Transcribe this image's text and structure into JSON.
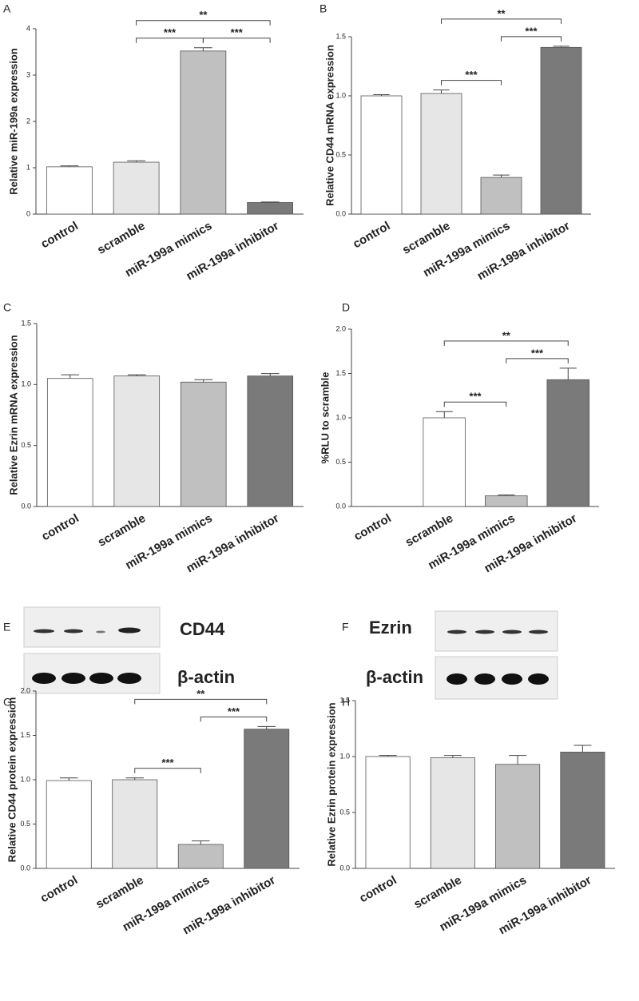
{
  "chart_data": [
    {
      "type": "bar",
      "panel": "A",
      "y_label": "Relative miR-199a expression",
      "categories": [
        "control",
        "scramble",
        "miR-199a mimics",
        "miR-199a inhibitor"
      ],
      "values": [
        1.02,
        1.12,
        3.52,
        0.25
      ],
      "errors": [
        0.02,
        0.03,
        0.07,
        0.01
      ],
      "colors": [
        "#ffffff",
        "#e6e6e6",
        "#c0c0c0",
        "#7a7a7a"
      ],
      "ylim": [
        0,
        4
      ],
      "yticks": [
        0,
        1,
        2,
        3,
        4
      ],
      "annotations": [
        {
          "text": "***",
          "between": [
            "scramble",
            "miR-199a mimics"
          ]
        },
        {
          "text": "***",
          "between": [
            "miR-199a mimics",
            "miR-199a inhibitor"
          ]
        },
        {
          "text": "**",
          "between": [
            "scramble",
            "miR-199a inhibitor"
          ]
        }
      ]
    },
    {
      "type": "bar",
      "panel": "B",
      "y_label": "Relative CD44 mRNA expression",
      "categories": [
        "control",
        "scramble",
        "miR-199a mimics",
        "miR-199a inhibitor"
      ],
      "values": [
        1.0,
        1.02,
        0.31,
        1.41
      ],
      "errors": [
        0.01,
        0.03,
        0.02,
        0.01
      ],
      "colors": [
        "#ffffff",
        "#e6e6e6",
        "#c0c0c0",
        "#7a7a7a"
      ],
      "ylim": [
        0,
        1.5
      ],
      "yticks": [
        {
          "value": 0,
          "label": "0.0"
        },
        0.5,
        {
          "value": 1,
          "label": "1.0"
        },
        1.5
      ],
      "annotations": [
        {
          "text": "***",
          "between": [
            "scramble",
            "miR-199a mimics"
          ]
        },
        {
          "text": "***",
          "between": [
            "miR-199a mimics",
            "miR-199a inhibitor"
          ]
        },
        {
          "text": "**",
          "between": [
            "scramble",
            "miR-199a inhibitor"
          ]
        }
      ]
    },
    {
      "type": "bar",
      "panel": "C",
      "y_label": "Relative Ezrin mRNA expression",
      "categories": [
        "control",
        "scramble",
        "miR-199a mimics",
        "miR-199a inhibitor"
      ],
      "values": [
        1.05,
        1.07,
        1.02,
        1.07
      ],
      "errors": [
        0.03,
        0.01,
        0.02,
        0.02
      ],
      "colors": [
        "#ffffff",
        "#e6e6e6",
        "#c0c0c0",
        "#7a7a7a"
      ],
      "ylim": [
        0,
        1.5
      ],
      "yticks": [
        {
          "value": 0,
          "label": "0.0"
        },
        0.5,
        {
          "value": 1,
          "label": "1.0"
        },
        1.5
      ],
      "annotations": []
    },
    {
      "type": "bar",
      "panel": "D",
      "y_label": "%RLU to scramble",
      "categories": [
        "control",
        "scramble",
        "miR-199a mimics",
        "miR-199a inhibitor"
      ],
      "values": [
        0,
        1.0,
        0.12,
        1.43
      ],
      "errors": [
        0,
        0.07,
        0.01,
        0.13
      ],
      "colors": [
        "#ffffff",
        "#ffffff",
        "#c0c0c0",
        "#7a7a7a"
      ],
      "ylim": [
        0,
        2
      ],
      "yticks": [
        {
          "value": 0,
          "label": "0.0"
        },
        0.5,
        {
          "value": 1,
          "label": "1.0"
        },
        1.5,
        {
          "value": 2,
          "label": "2.0"
        }
      ],
      "annotations": [
        {
          "text": "***",
          "between": [
            "scramble",
            "miR-199a mimics"
          ]
        },
        {
          "text": "***",
          "between": [
            "miR-199a mimics",
            "miR-199a inhibitor"
          ]
        },
        {
          "text": "**",
          "between": [
            "scramble",
            "miR-199a inhibitor"
          ]
        }
      ]
    },
    {
      "type": "bar",
      "panel": "G",
      "y_label": "Relative CD44 protein expression",
      "categories": [
        "control",
        "scramble",
        "miR-199a mimics",
        "miR-199a inhibitor"
      ],
      "values": [
        0.99,
        1.0,
        0.27,
        1.57
      ],
      "errors": [
        0.03,
        0.02,
        0.04,
        0.03
      ],
      "colors": [
        "#ffffff",
        "#e6e6e6",
        "#c0c0c0",
        "#7a7a7a"
      ],
      "ylim": [
        0,
        2
      ],
      "yticks": [
        {
          "value": 0,
          "label": "0.0"
        },
        0.5,
        {
          "value": 1,
          "label": "1.0"
        },
        1.5,
        {
          "value": 2,
          "label": "2.0"
        }
      ],
      "annotations": [
        {
          "text": "***",
          "between": [
            "scramble",
            "miR-199a mimics"
          ]
        },
        {
          "text": "***",
          "between": [
            "miR-199a mimics",
            "miR-199a inhibitor"
          ]
        },
        {
          "text": "**",
          "between": [
            "scramble",
            "miR-199a inhibitor"
          ]
        }
      ]
    },
    {
      "type": "bar",
      "panel": "H",
      "y_label": "Relative Ezrin protein expression",
      "categories": [
        "control",
        "scramble",
        "miR-199a mimics",
        "miR-199a inhibitor"
      ],
      "values": [
        1.0,
        0.99,
        0.93,
        1.04
      ],
      "errors": [
        0.01,
        0.02,
        0.08,
        0.06
      ],
      "colors": [
        "#ffffff",
        "#e6e6e6",
        "#c0c0c0",
        "#7a7a7a"
      ],
      "ylim": [
        0,
        1.5
      ],
      "yticks": [
        {
          "value": 0,
          "label": "0.0"
        },
        0.5,
        {
          "value": 1,
          "label": "1.0"
        },
        1.5
      ],
      "annotations": []
    }
  ],
  "blots": [
    {
      "panel": "E",
      "labels": [
        "CD44",
        "β-actin"
      ]
    },
    {
      "panel": "F",
      "labels": [
        "Ezrin",
        "β-actin"
      ]
    }
  ]
}
